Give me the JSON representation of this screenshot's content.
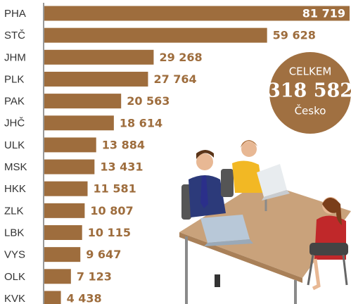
{
  "chart_data": {
    "type": "bar",
    "orientation": "horizontal",
    "categories": [
      "PHA",
      "STČ",
      "JHM",
      "PLK",
      "PAK",
      "JHČ",
      "ULK",
      "MSK",
      "HKK",
      "ZLK",
      "LBK",
      "VYS",
      "OLK",
      "KVK"
    ],
    "values": [
      81719,
      59628,
      29268,
      27764,
      20563,
      18614,
      13884,
      13431,
      11581,
      10807,
      10115,
      9647,
      7123,
      4438
    ],
    "value_labels": [
      "81 719",
      "59 628",
      "29 268",
      "27 764",
      "20 563",
      "18 614",
      "13 884",
      "13 431",
      "11 581",
      "10 807",
      "10 115",
      "9 647",
      "7 123",
      "4 438"
    ],
    "color": "#9e6d3d",
    "total_caption": "CELKEM",
    "total": {
      "value": 318582,
      "label": "318 582"
    },
    "total_subcaption": "Česko"
  }
}
